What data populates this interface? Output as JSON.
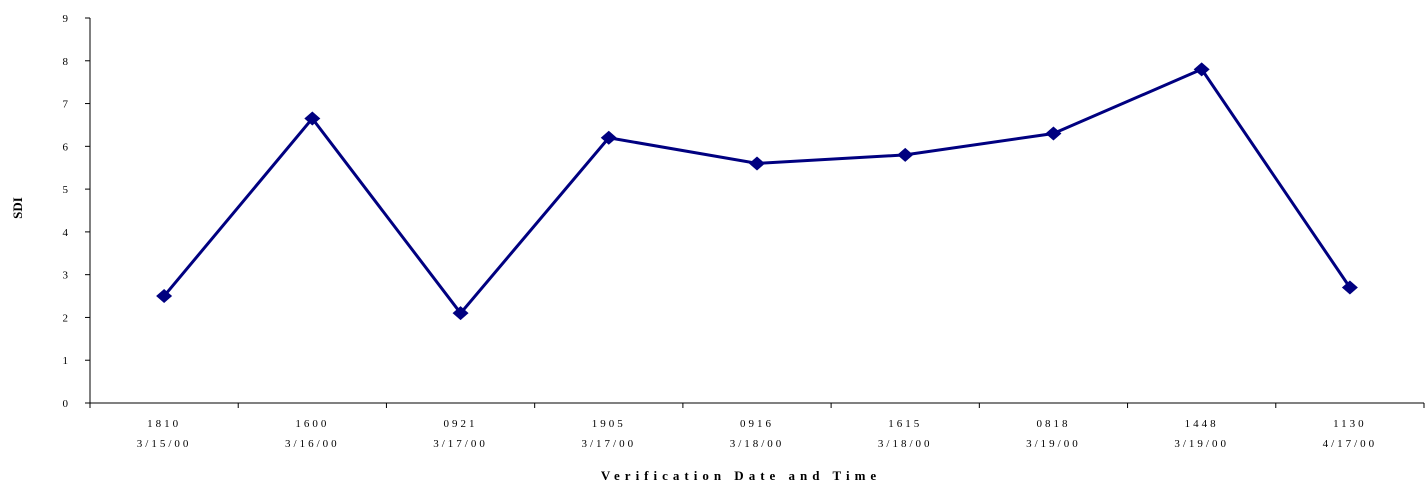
{
  "chart_data": {
    "type": "line",
    "title": "",
    "xlabel": "Verification Date and Time",
    "ylabel": "SDI",
    "ylim": [
      0,
      9
    ],
    "yticks": [
      0,
      1,
      2,
      3,
      4,
      5,
      6,
      7,
      8,
      9
    ],
    "categories": [
      {
        "time": "1810",
        "date": "3/15/00"
      },
      {
        "time": "1600",
        "date": "3/16/00"
      },
      {
        "time": "0921",
        "date": "3/17/00"
      },
      {
        "time": "1905",
        "date": "3/17/00"
      },
      {
        "time": "0916",
        "date": "3/18/00"
      },
      {
        "time": "1615",
        "date": "3/18/00"
      },
      {
        "time": "0818",
        "date": "3/19/00"
      },
      {
        "time": "1448",
        "date": "3/19/00"
      },
      {
        "time": "1130",
        "date": "4/17/00"
      }
    ],
    "series": [
      {
        "values": [
          2.5,
          6.65,
          2.1,
          6.2,
          5.6,
          5.8,
          6.3,
          7.8,
          2.7
        ],
        "color": "#000080",
        "marker": "diamond"
      }
    ],
    "grid": false,
    "legend": "none"
  }
}
